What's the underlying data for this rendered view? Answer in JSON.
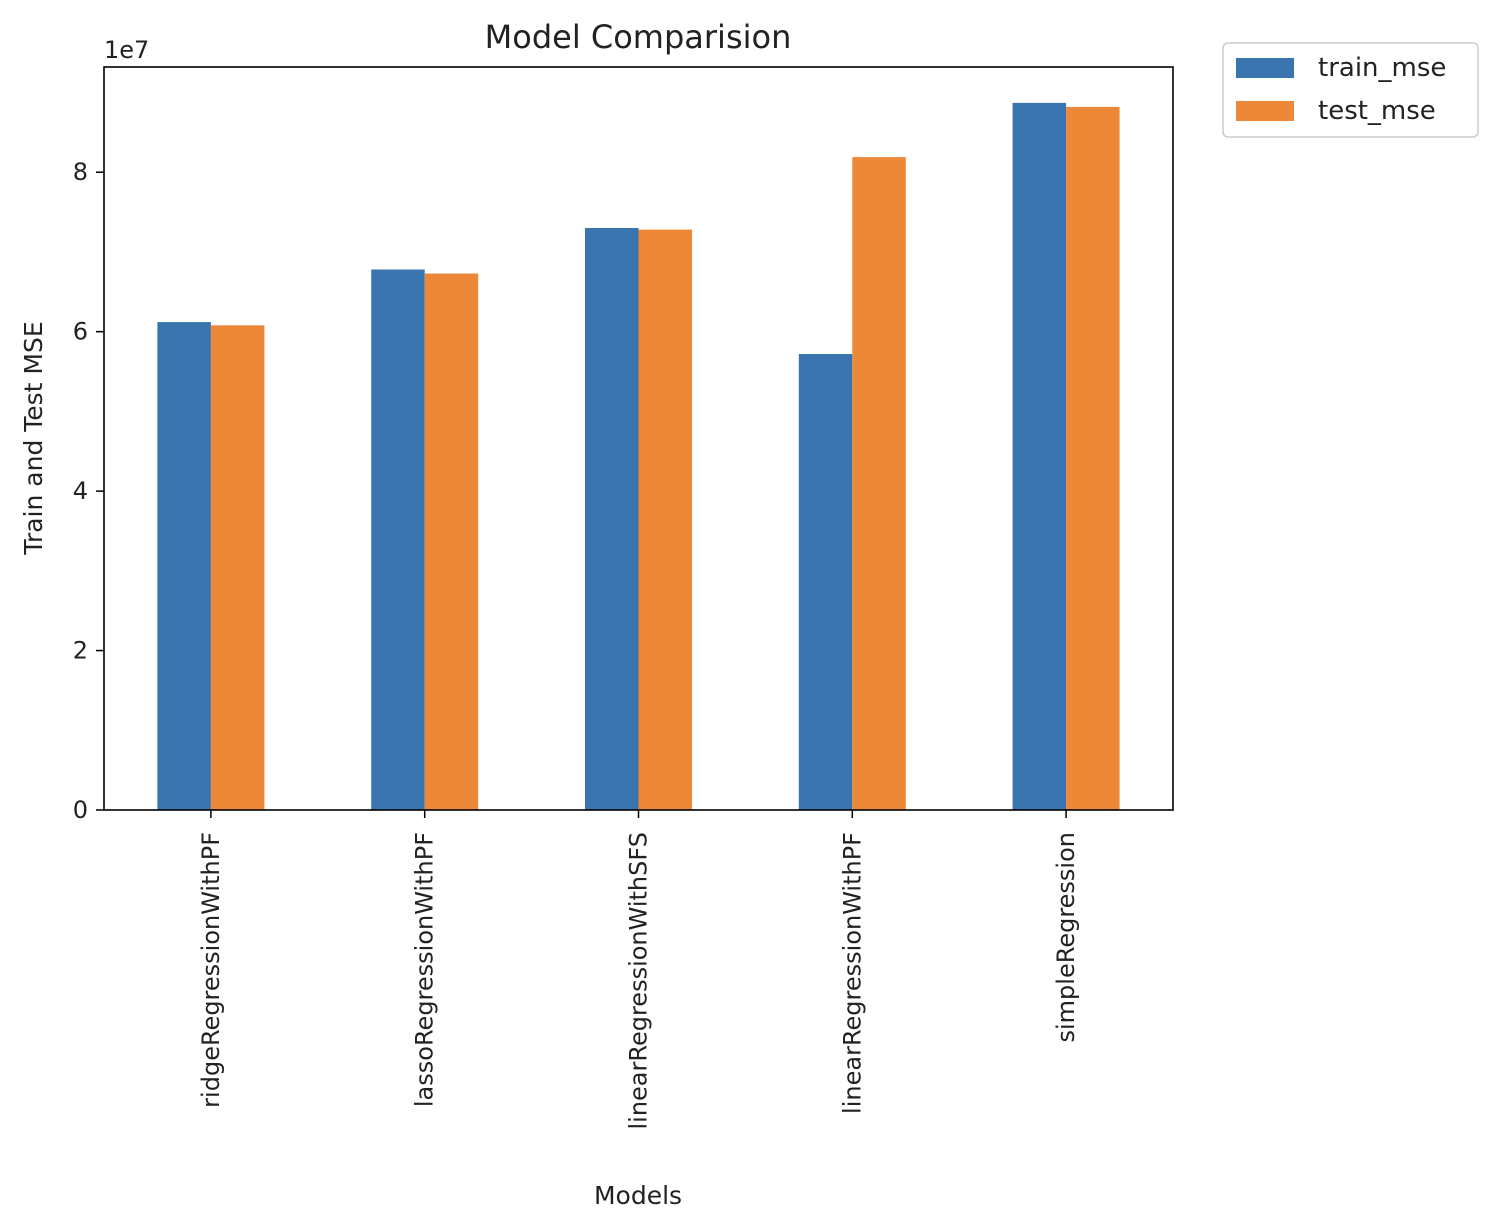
{
  "chart_data": {
    "type": "bar",
    "title": "Model Comparision",
    "xlabel": "Models",
    "ylabel": "Train and Test MSE",
    "y_offset_label": "1e7",
    "categories": [
      "ridgeRegressionWithPF",
      "lassoRegressionWithPF",
      "linearRegressionWithSFS",
      "linearRegressionWithPF",
      "simpleRegression"
    ],
    "series": [
      {
        "name": "train_mse",
        "color": "#3a74ae",
        "values": [
          61200000,
          67800000,
          73000000,
          57200000,
          88700000
        ]
      },
      {
        "name": "test_mse",
        "color": "#ee8839",
        "values": [
          60800000,
          67300000,
          72800000,
          81900000,
          88200000
        ]
      }
    ],
    "ylim": [
      0,
      93200000
    ],
    "yticks": [
      0,
      20000000,
      40000000,
      60000000,
      80000000
    ],
    "ytick_labels": [
      "0",
      "2",
      "4",
      "6",
      "8"
    ],
    "grid": false,
    "legend_position": "outside-top-right"
  }
}
